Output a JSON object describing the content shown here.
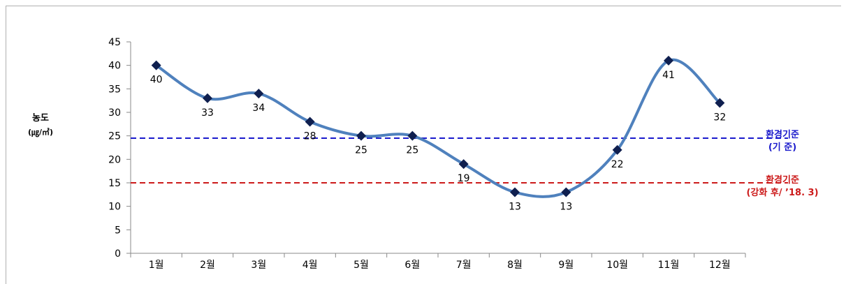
{
  "ylabel": {
    "main": "농도",
    "unit": "(㎍/㎥)"
  },
  "reference_lines": {
    "existing": {
      "title": "환경기준",
      "sub": "(기    준)",
      "color": "#1a1acc"
    },
    "strengthened": {
      "title": "환경기준",
      "sub": "(강화 후/ ’18. 3)",
      "color": "#cc1a1a"
    }
  },
  "chart_data": {
    "type": "line",
    "categories": [
      "1월",
      "2월",
      "3월",
      "4월",
      "5월",
      "6월",
      "7월",
      "8월",
      "9월",
      "10월",
      "11월",
      "12월"
    ],
    "values": [
      40,
      33,
      34,
      28,
      25,
      25,
      19,
      13,
      13,
      22,
      41,
      32
    ],
    "ylim": [
      0,
      45
    ],
    "yticks": [
      0,
      5,
      10,
      15,
      20,
      25,
      30,
      35,
      40,
      45
    ],
    "xlabel": "",
    "ylabel": "농도 (㎍/㎥)",
    "series_color": "#4f81bd",
    "marker_color": "#0f1f4f",
    "hlines": [
      {
        "value": 24.5,
        "color": "#1a1acc",
        "label": "환경기준 (기    준)"
      },
      {
        "value": 15,
        "color": "#cc1a1a",
        "label": "환경기준 (강화 후/ ’18. 3)"
      }
    ],
    "data_labels": true,
    "grid": false,
    "legend": "none"
  }
}
